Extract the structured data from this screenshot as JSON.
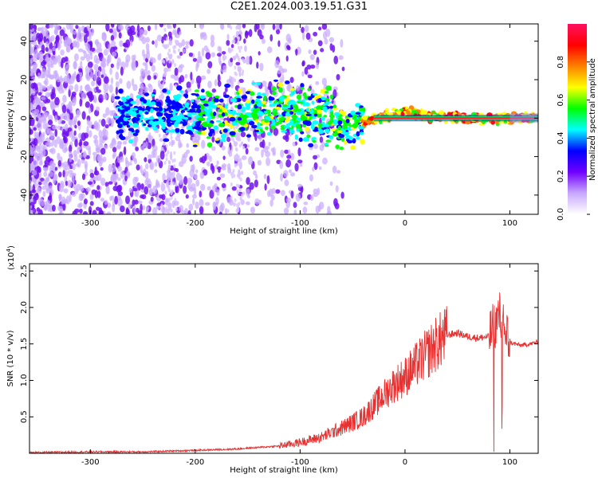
{
  "title": "C2E1.2024.003.19.51.G31",
  "chart_data": [
    {
      "type": "heatmap",
      "title": "C2E1.2024.003.19.51.G31",
      "xlabel": "Height of straight line (km)",
      "ylabel": "Frequency (Hz)",
      "xlim": [
        -358,
        127
      ],
      "ylim": [
        -50,
        49
      ],
      "x_ticks": [
        -300,
        -200,
        -100,
        0,
        100
      ],
      "x_tick_labels": [
        "-300",
        "-200",
        "-100",
        "0",
        "100"
      ],
      "y_ticks": [
        -40,
        -20,
        0,
        20,
        40
      ],
      "y_tick_labels": [
        "-40",
        "-20",
        "0",
        "20",
        "40"
      ],
      "colorbar": {
        "label": "Normalized spectral amplitude",
        "range": [
          0,
          1
        ],
        "ticks": [
          0.0,
          0.2,
          0.4,
          0.6,
          0.8
        ],
        "tick_labels": [
          "0.0",
          "0.2",
          "0.4",
          "0.6",
          "0.8"
        ],
        "colors": [
          "#ffffff",
          "#c8a8ff",
          "#7000ff",
          "#0000ff",
          "#00ffff",
          "#00ff00",
          "#ffff00",
          "#ff8000",
          "#ff0000",
          "#ff1060"
        ]
      },
      "ridge": {
        "x": [
          -270,
          -240,
          -210,
          -180,
          -150,
          -120,
          -90,
          -70,
          -55,
          -45,
          -30,
          -15,
          0,
          20,
          60,
          100,
          127
        ],
        "y": [
          0,
          3,
          2,
          1,
          4,
          5,
          2,
          -1,
          -6,
          -3,
          0,
          1,
          3,
          1,
          0,
          0,
          0
        ]
      }
    },
    {
      "type": "line",
      "xlabel": "Height of straight line (km)",
      "ylabel": "SNR (10 * v/v)",
      "multiplier_label": "(x10",
      "multiplier_exp": "4",
      "xlim": [
        -358,
        127
      ],
      "ylim": [
        0,
        2.6
      ],
      "x_ticks": [
        -300,
        -200,
        -100,
        0,
        100
      ],
      "x_tick_labels": [
        "-300",
        "-200",
        "-100",
        "0",
        "100"
      ],
      "y_ticks": [
        0.5,
        1.0,
        1.5,
        2.0,
        2.5
      ],
      "y_tick_labels": [
        "0.5",
        "1.0",
        "1.5",
        "2.0",
        "2.5"
      ],
      "color": "#e83030",
      "series": [
        {
          "x": [
            -358,
            -300,
            -250,
            -200,
            -160,
            -120,
            -100,
            -80,
            -60,
            -40,
            -30,
            -20,
            -10,
            0,
            10,
            20,
            30,
            40,
            50,
            60,
            70,
            80,
            85,
            90,
            95,
            100,
            110,
            120,
            127
          ],
          "y": [
            0.01,
            0.02,
            0.02,
            0.04,
            0.06,
            0.1,
            0.15,
            0.22,
            0.35,
            0.5,
            0.65,
            0.8,
            0.95,
            1.05,
            1.2,
            1.35,
            1.5,
            1.62,
            1.65,
            1.6,
            1.58,
            1.6,
            1.75,
            1.9,
            1.7,
            1.52,
            1.48,
            1.5,
            1.53
          ]
        }
      ]
    }
  ]
}
